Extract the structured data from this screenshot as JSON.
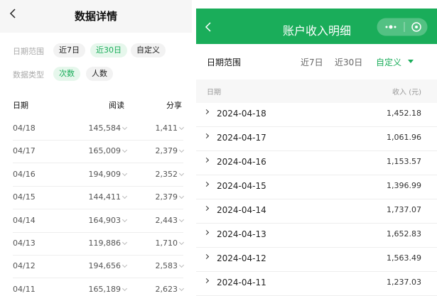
{
  "left": {
    "header": {
      "title": "数据详情"
    },
    "filters": {
      "date_label": "日期范围",
      "date_options": [
        "近7日",
        "近30日",
        "自定义"
      ],
      "type_label": "数据类型",
      "type_options": [
        "次数",
        "人数"
      ]
    },
    "table": {
      "columns": [
        "日期",
        "阅读",
        "分享"
      ],
      "rows": [
        [
          "04/18",
          "145,584",
          "1,411"
        ],
        [
          "04/17",
          "165,009",
          "2,379"
        ],
        [
          "04/16",
          "194,909",
          "2,352"
        ],
        [
          "04/15",
          "144,411",
          "2,379"
        ],
        [
          "04/14",
          "164,903",
          "2,443"
        ],
        [
          "04/13",
          "119,886",
          "1,710"
        ],
        [
          "04/12",
          "194,656",
          "2,583"
        ],
        [
          "04/11",
          "165,189",
          "2,623"
        ]
      ]
    }
  },
  "right": {
    "header": {
      "title": "账户收入明细"
    },
    "filter": {
      "label": "日期范围",
      "options": [
        "近7日",
        "近30日",
        "自定义"
      ]
    },
    "table": {
      "columns": [
        "日期",
        "收入 (元)"
      ],
      "rows": [
        [
          "2024-04-18",
          "1,452.18"
        ],
        [
          "2024-04-17",
          "1,061.96"
        ],
        [
          "2024-04-16",
          "1,153.57"
        ],
        [
          "2024-04-15",
          "1,396.99"
        ],
        [
          "2024-04-14",
          "1,737.07"
        ],
        [
          "2024-04-13",
          "1,652.83"
        ],
        [
          "2024-04-12",
          "1,563.49"
        ],
        [
          "2024-04-11",
          "1,237.03"
        ]
      ]
    }
  }
}
